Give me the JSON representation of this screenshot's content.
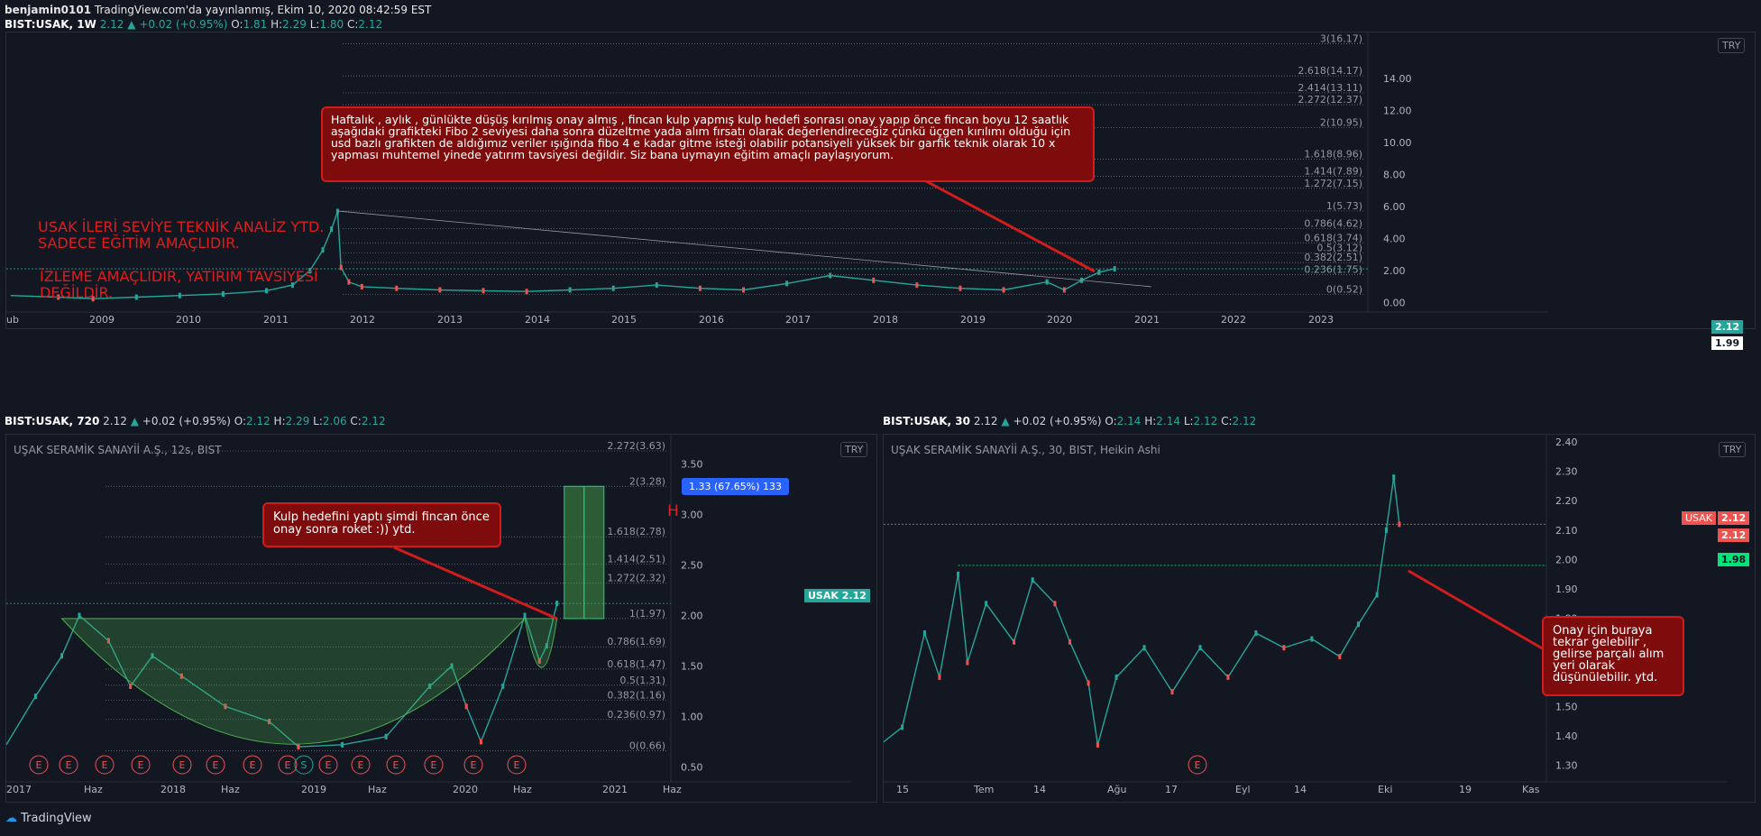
{
  "header": {
    "author": "benjamin0101",
    "published": "TradingView.com'da yayınlanmış, Ekim 10, 2020 08:42:59 EST"
  },
  "legends": {
    "weekly": {
      "symbol": "BIST:USAK, 1W",
      "last": "2.12",
      "change": "+0.02 (+0.95%)",
      "o": "1.81",
      "h": "2.29",
      "l": "1.80",
      "c": "2.12"
    },
    "h12": {
      "symbol": "BIST:USAK, 720",
      "last": "2.12",
      "change": "+0.02 (+0.95%)",
      "o": "2.12",
      "h": "2.29",
      "l": "2.06",
      "c": "2.12"
    },
    "m30": {
      "symbol": "BIST:USAK, 30",
      "last": "2.12",
      "change": "+0.02 (+0.95%)",
      "o": "2.14",
      "h": "2.14",
      "l": "2.12",
      "c": "2.12"
    }
  },
  "titles": {
    "h12": "UŞAK SERAMİK SANAYİİ A.Ş., 12s, BIST",
    "m30": "UŞAK SERAMİK SANAYİİ A.Ş., 30, BIST, Heikin Ashi"
  },
  "currency": "TRY",
  "notes": {
    "main": "Haftalık , aylık , günlükte düşüş kırılmış onay almış , fincan kulp yapmış kulp hedefi sonrası onay yapıp önce fincan boyu 12 saatlık aşağıdaki grafikteki Fibo 2 seviyesi daha sonra düzeltme yada alım fırsatı olarak değerlendireceğiz çünkü üçgen kırılımı olduğu için usd bazlı grafikten de aldığımız veriler ışığında fibo 4 e kadar gitme isteği olabilir potansiyeli yüksek bir garfik teknik olarak 10 x yapması muhtemel yinede yatırım tavsiyesi değildir. Siz bana uymayın eğitim amaçlı paylaşıyorum.",
    "kulp": "Kulp hedefini yaptı şimdi fincan önce onay sonra roket :)) ytd.",
    "onay": "Onay için buraya tekrar gelebilir , gelirse parçalı alım yeri olarak düşünülebilir. ytd."
  },
  "red_texts": {
    "line1": "USAK İLERİ SEVİYE TEKNİK ANALİZ YTD.",
    "line2": "SADECE EĞİTİM AMAÇLIDIR.",
    "line3": "İZLEME AMAÇLIDIR, YATIRIM TAVSİYESİ",
    "line4": "DEĞİLDİR.",
    "h": "H"
  },
  "tags": {
    "w_price": "2.12",
    "w_ref": "1.99",
    "h_sym": "USAK",
    "h_price": "2.12",
    "m_sym": "USAK",
    "m_price": "2.12",
    "m_price2": "2.12",
    "m_ref": "1.98"
  },
  "measure_label": "1.33 (67.65%) 133",
  "footer": "TradingView",
  "chart_data": [
    {
      "type": "line",
      "title": "BIST:USAK, 1W",
      "x_ticks": [
        "ub",
        "2009",
        "2010",
        "2011",
        "2012",
        "2013",
        "2014",
        "2015",
        "2016",
        "2017",
        "2018",
        "2019",
        "2020",
        "2021",
        "2022",
        "2023"
      ],
      "y_ticks": [
        "0.00",
        "2.00",
        "4.00",
        "6.00",
        "8.00",
        "10.00",
        "12.00",
        "14.00"
      ],
      "ylim": [
        -0.3,
        16.6
      ],
      "fib_levels": [
        {
          "label": "3(16.17)",
          "v": 16.17
        },
        {
          "label": "2.618(14.17)",
          "v": 14.17
        },
        {
          "label": "2.414(13.11)",
          "v": 13.11
        },
        {
          "label": "2.272(12.37)",
          "v": 12.37
        },
        {
          "label": "2(10.95)",
          "v": 10.95
        },
        {
          "label": "1.618(8.96)",
          "v": 8.96
        },
        {
          "label": "1.414(7.89)",
          "v": 7.89
        },
        {
          "label": "1.272(7.15)",
          "v": 7.15
        },
        {
          "label": "1(5.73)",
          "v": 5.73
        },
        {
          "label": "0.786(4.62)",
          "v": 4.62
        },
        {
          "label": "0.618(3.74)",
          "v": 3.74
        },
        {
          "label": "0.5(3.12)",
          "v": 3.12
        },
        {
          "label": "0.382(2.51)",
          "v": 2.51
        },
        {
          "label": "0.236(1.75)",
          "v": 1.75
        },
        {
          "label": "0(0.52)",
          "v": 0.52
        }
      ],
      "price": [
        [
          2008.05,
          0.45
        ],
        [
          2008.6,
          0.35
        ],
        [
          2009.0,
          0.25
        ],
        [
          2009.5,
          0.35
        ],
        [
          2010.0,
          0.45
        ],
        [
          2010.5,
          0.55
        ],
        [
          2011.0,
          0.75
        ],
        [
          2011.3,
          1.1
        ],
        [
          2011.5,
          2.0
        ],
        [
          2011.65,
          3.3
        ],
        [
          2011.75,
          4.6
        ],
        [
          2011.82,
          5.7
        ],
        [
          2011.86,
          2.2
        ],
        [
          2011.95,
          1.3
        ],
        [
          2012.1,
          1.0
        ],
        [
          2012.5,
          0.9
        ],
        [
          2013.0,
          0.8
        ],
        [
          2013.5,
          0.75
        ],
        [
          2014.0,
          0.7
        ],
        [
          2014.5,
          0.8
        ],
        [
          2015.0,
          0.9
        ],
        [
          2015.5,
          1.1
        ],
        [
          2016.0,
          0.9
        ],
        [
          2016.5,
          0.8
        ],
        [
          2017.0,
          1.2
        ],
        [
          2017.5,
          1.7
        ],
        [
          2018.0,
          1.4
        ],
        [
          2018.5,
          1.1
        ],
        [
          2019.0,
          0.9
        ],
        [
          2019.5,
          0.8
        ],
        [
          2020.0,
          1.3
        ],
        [
          2020.2,
          0.8
        ],
        [
          2020.4,
          1.4
        ],
        [
          2020.6,
          1.9
        ],
        [
          2020.78,
          2.12
        ]
      ]
    },
    {
      "type": "line",
      "title": "BIST:USAK, 720",
      "x_ticks": [
        "2017",
        "Haz",
        "2018",
        "Haz",
        "2019",
        "Haz",
        "2020",
        "Haz",
        "2021",
        "Haz"
      ],
      "y_ticks": [
        "0.50",
        "1.00",
        "1.50",
        "2.00",
        "2.50",
        "3.00",
        "3.50"
      ],
      "ylim": [
        0.37,
        3.72
      ],
      "fib_levels": [
        {
          "label": "2.272(3.63)",
          "v": 3.63
        },
        {
          "label": "2(3.28)",
          "v": 3.28
        },
        {
          "label": "1.618(2.78)",
          "v": 2.78
        },
        {
          "label": "1.414(2.51)",
          "v": 2.51
        },
        {
          "label": "1.272(2.32)",
          "v": 2.32
        },
        {
          "label": "1(1.97)",
          "v": 1.97
        },
        {
          "label": "0.786(1.69)",
          "v": 1.69
        },
        {
          "label": "0.618(1.47)",
          "v": 1.47
        },
        {
          "label": "0.5(1.31)",
          "v": 1.31
        },
        {
          "label": "0.382(1.16)",
          "v": 1.16
        },
        {
          "label": "0.236(0.97)",
          "v": 0.97
        },
        {
          "label": "0(0.66)",
          "v": 0.66
        }
      ],
      "price": [
        [
          2017.0,
          0.72
        ],
        [
          2017.2,
          1.2
        ],
        [
          2017.38,
          1.6
        ],
        [
          2017.5,
          2.0
        ],
        [
          2017.7,
          1.75
        ],
        [
          2017.85,
          1.3
        ],
        [
          2018.0,
          1.6
        ],
        [
          2018.2,
          1.4
        ],
        [
          2018.5,
          1.1
        ],
        [
          2018.8,
          0.95
        ],
        [
          2019.0,
          0.7
        ],
        [
          2019.3,
          0.72
        ],
        [
          2019.6,
          0.8
        ],
        [
          2019.9,
          1.3
        ],
        [
          2020.05,
          1.5
        ],
        [
          2020.15,
          1.1
        ],
        [
          2020.25,
          0.75
        ],
        [
          2020.4,
          1.3
        ],
        [
          2020.55,
          2.0
        ],
        [
          2020.65,
          1.55
        ],
        [
          2020.7,
          1.7
        ],
        [
          2020.77,
          2.12
        ]
      ],
      "events": [
        "E",
        "E",
        "E",
        "E",
        "E",
        "E",
        "E",
        "E",
        "S",
        "E",
        "E",
        "E",
        "E",
        "E",
        "E"
      ]
    },
    {
      "type": "line",
      "title": "BIST:USAK, 30",
      "x_ticks": [
        "15",
        "Tem",
        "14",
        "Ağu",
        "17",
        "Eyl",
        "14",
        "Eki",
        "19",
        "Kas"
      ],
      "y_ticks": [
        "1.30",
        "1.40",
        "1.50",
        "1.60",
        "1.70",
        "1.80",
        "1.90",
        "2.00",
        "2.10",
        "2.20",
        "2.30",
        "2.40"
      ],
      "ylim": [
        1.25,
        2.4
      ],
      "price": [
        [
          0,
          1.38
        ],
        [
          10,
          1.43
        ],
        [
          22,
          1.75
        ],
        [
          30,
          1.6
        ],
        [
          40,
          1.95
        ],
        [
          45,
          1.65
        ],
        [
          55,
          1.85
        ],
        [
          70,
          1.72
        ],
        [
          80,
          1.93
        ],
        [
          92,
          1.85
        ],
        [
          100,
          1.72
        ],
        [
          110,
          1.58
        ],
        [
          115,
          1.37
        ],
        [
          125,
          1.6
        ],
        [
          140,
          1.7
        ],
        [
          155,
          1.55
        ],
        [
          170,
          1.7
        ],
        [
          185,
          1.6
        ],
        [
          200,
          1.75
        ],
        [
          215,
          1.7
        ],
        [
          230,
          1.73
        ],
        [
          245,
          1.67
        ],
        [
          255,
          1.78
        ],
        [
          265,
          1.88
        ],
        [
          270,
          2.1
        ],
        [
          274,
          2.28
        ],
        [
          277,
          2.12
        ]
      ],
      "events": [
        "E"
      ]
    }
  ]
}
